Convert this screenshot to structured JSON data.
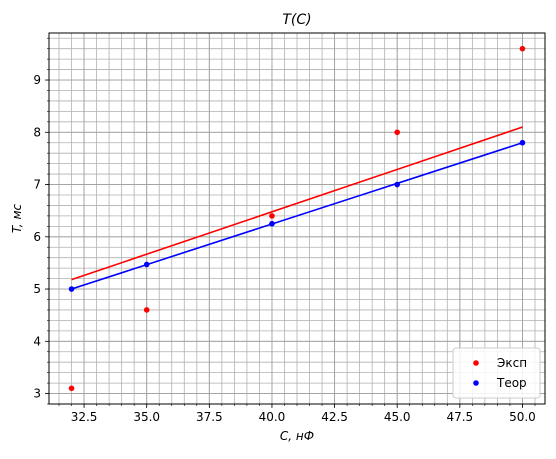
{
  "chart_data": {
    "type": "scatter",
    "title": "T(C)",
    "xlabel": "C, нФ",
    "ylabel": "T, мс",
    "xlim": [
      31.1,
      50.9
    ],
    "ylim": [
      2.8,
      9.9
    ],
    "xticks": [
      32.5,
      35.0,
      37.5,
      40.0,
      42.5,
      45.0,
      47.5,
      50.0
    ],
    "xtick_labels": [
      "32.5",
      "35.0",
      "37.5",
      "40.0",
      "42.5",
      "45.0",
      "47.5",
      "50.0"
    ],
    "yticks": [
      3,
      4,
      5,
      6,
      7,
      8,
      9
    ],
    "ytick_labels": [
      "3",
      "4",
      "5",
      "6",
      "7",
      "8",
      "9"
    ],
    "x_minor_step": 0.5,
    "y_minor_step": 0.2,
    "grid": true,
    "legend_position": "lower-right",
    "series": [
      {
        "name": "Эксп",
        "color": "#ff0000",
        "x": [
          32,
          35,
          40,
          45,
          50
        ],
        "y": [
          3.1,
          4.6,
          6.4,
          8.0,
          9.6
        ],
        "fit_line": {
          "x": [
            32,
            50
          ],
          "y": [
            5.18,
            8.1
          ]
        }
      },
      {
        "name": "Теор",
        "color": "#0000ff",
        "x": [
          32,
          35,
          40,
          45,
          50
        ],
        "y": [
          5.0,
          5.47,
          6.25,
          7.0,
          7.8
        ],
        "fit_line": {
          "x": [
            32,
            50
          ],
          "y": [
            5.0,
            7.8
          ]
        }
      }
    ]
  }
}
